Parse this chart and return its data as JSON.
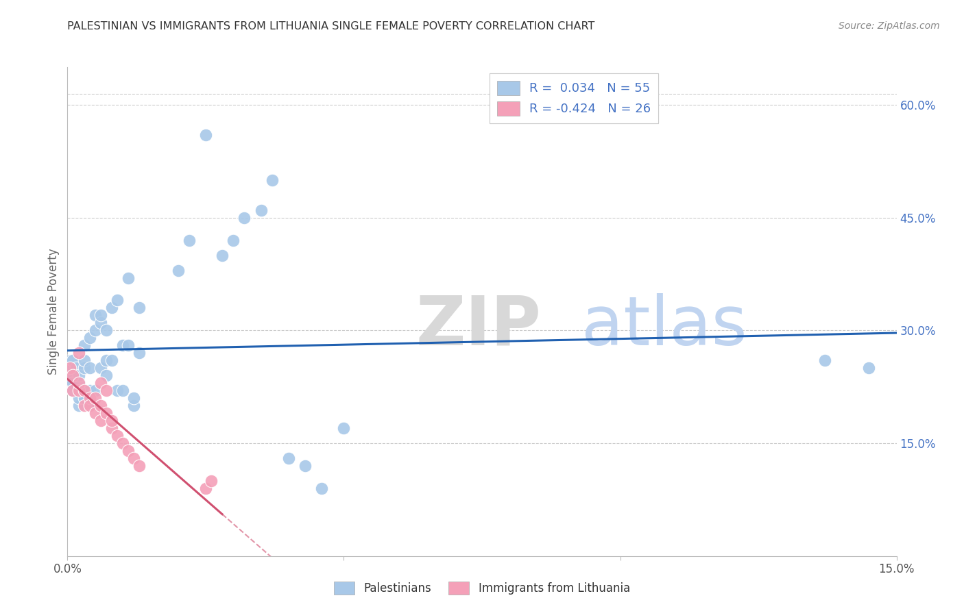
{
  "title": "PALESTINIAN VS IMMIGRANTS FROM LITHUANIA SINGLE FEMALE POVERTY CORRELATION CHART",
  "source": "Source: ZipAtlas.com",
  "ylabel": "Single Female Poverty",
  "xlim": [
    0.0,
    0.15
  ],
  "ylim": [
    0.0,
    0.65
  ],
  "ytick_labels_right": [
    "15.0%",
    "30.0%",
    "45.0%",
    "60.0%"
  ],
  "ytick_vals_right": [
    0.15,
    0.3,
    0.45,
    0.6
  ],
  "legend_r1": "R =  0.034   N = 55",
  "legend_r2": "R = -0.424   N = 26",
  "color_blue": "#a8c8e8",
  "color_pink": "#f4a0b8",
  "trend_blue": "#2060b0",
  "trend_pink": "#d05070",
  "bg_color": "#ffffff",
  "grid_color": "#cccccc",
  "palestinians_x": [
    0.0005,
    0.001,
    0.001,
    0.001,
    0.001,
    0.0015,
    0.002,
    0.002,
    0.002,
    0.002,
    0.002,
    0.003,
    0.003,
    0.003,
    0.003,
    0.003,
    0.004,
    0.004,
    0.004,
    0.004,
    0.005,
    0.005,
    0.005,
    0.006,
    0.006,
    0.006,
    0.007,
    0.007,
    0.007,
    0.008,
    0.008,
    0.009,
    0.009,
    0.01,
    0.01,
    0.011,
    0.011,
    0.012,
    0.012,
    0.013,
    0.013,
    0.02,
    0.022,
    0.025,
    0.028,
    0.03,
    0.032,
    0.035,
    0.037,
    0.04,
    0.043,
    0.046,
    0.05,
    0.137,
    0.145
  ],
  "palestinians_y": [
    0.25,
    0.26,
    0.24,
    0.23,
    0.22,
    0.25,
    0.22,
    0.23,
    0.24,
    0.2,
    0.21,
    0.21,
    0.22,
    0.28,
    0.25,
    0.26,
    0.2,
    0.22,
    0.29,
    0.25,
    0.22,
    0.3,
    0.32,
    0.25,
    0.31,
    0.32,
    0.24,
    0.26,
    0.3,
    0.26,
    0.33,
    0.22,
    0.34,
    0.22,
    0.28,
    0.28,
    0.37,
    0.2,
    0.21,
    0.27,
    0.33,
    0.38,
    0.42,
    0.56,
    0.4,
    0.42,
    0.45,
    0.46,
    0.5,
    0.13,
    0.12,
    0.09,
    0.17,
    0.26,
    0.25
  ],
  "lithuania_x": [
    0.0005,
    0.001,
    0.001,
    0.002,
    0.002,
    0.002,
    0.003,
    0.003,
    0.004,
    0.004,
    0.005,
    0.005,
    0.006,
    0.006,
    0.006,
    0.007,
    0.007,
    0.008,
    0.008,
    0.009,
    0.01,
    0.011,
    0.012,
    0.013,
    0.025,
    0.026
  ],
  "lithuania_y": [
    0.25,
    0.24,
    0.22,
    0.22,
    0.23,
    0.27,
    0.2,
    0.22,
    0.21,
    0.2,
    0.19,
    0.21,
    0.18,
    0.2,
    0.23,
    0.19,
    0.22,
    0.17,
    0.18,
    0.16,
    0.15,
    0.14,
    0.13,
    0.12,
    0.09,
    0.1
  ]
}
